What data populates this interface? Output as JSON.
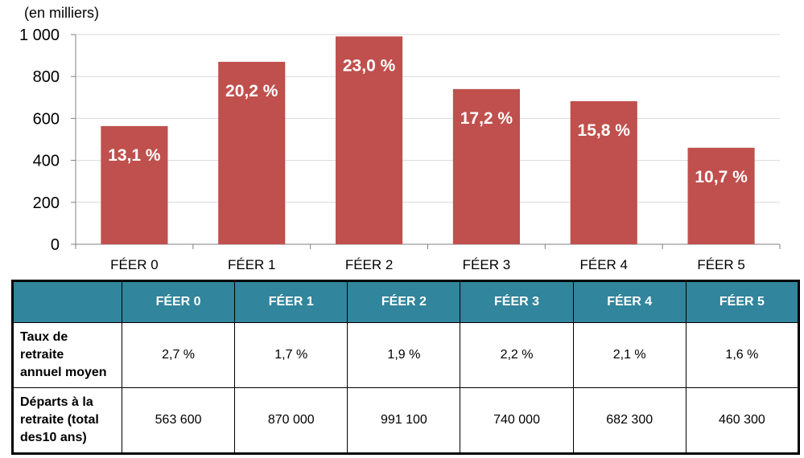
{
  "chart_data": {
    "type": "bar",
    "ylabel": "(en milliers)",
    "ylim": [
      0,
      1000
    ],
    "yticks": [
      0,
      200,
      400,
      600,
      800,
      1000
    ],
    "ytick_labels": [
      "0",
      "200",
      "400",
      "600",
      "800",
      "1 000"
    ],
    "categories": [
      "FÉER 0",
      "FÉER 1",
      "FÉER 2",
      "FÉER 3",
      "FÉER 4",
      "FÉER 5"
    ],
    "values": [
      563.6,
      870.0,
      991.1,
      740.0,
      682.3,
      460.3
    ],
    "data_labels": [
      "13,1 %",
      "20,2 %",
      "23,0 %",
      "17,2 %",
      "15,8 %",
      "10,7 %"
    ],
    "bar_color": "#c0504d",
    "grid": true
  },
  "table": {
    "headers": [
      "",
      "FÉER 0",
      "FÉER 1",
      "FÉER 2",
      "FÉER 3",
      "FÉER 4",
      "FÉER 5"
    ],
    "rows": [
      {
        "label_lines": [
          "Taux de",
          "retraite",
          "annuel moyen"
        ],
        "cells": [
          "2,7 %",
          "1,7 %",
          "1,9 %",
          "2,2 %",
          "2,1 %",
          "1,6 %"
        ]
      },
      {
        "label_lines": [
          "Départs à la",
          "retraite (total",
          "des10 ans)"
        ],
        "cells": [
          "563 600",
          "870 000",
          "991 100",
          "740 000",
          "682 300",
          "460 300"
        ]
      }
    ]
  },
  "colors": {
    "header_bg": "#31859c",
    "header_text": "#ffffff",
    "grid": "#d9d9d9"
  }
}
